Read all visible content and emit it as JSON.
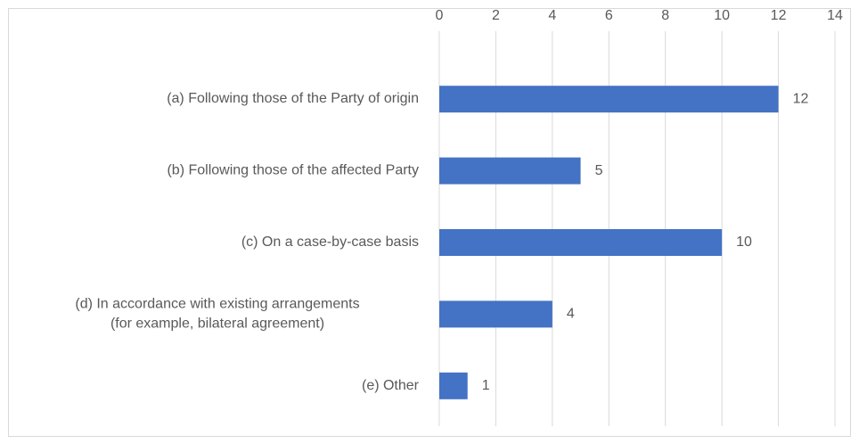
{
  "chart_data": {
    "type": "bar",
    "orientation": "horizontal",
    "categories": [
      "(a) Following those of the Party of origin",
      "(b) Following those of the affected Party",
      "(c) On a case-by-case basis",
      "(d) In accordance with existing arrangements\n(for example, bilateral agreement)",
      "(e) Other"
    ],
    "values": [
      12,
      5,
      10,
      4,
      1
    ],
    "color": "#4472c4",
    "xlim": [
      0,
      14
    ],
    "xticks": [
      0,
      2,
      4,
      6,
      8,
      10,
      12,
      14
    ],
    "grid": true,
    "data_labels": true
  }
}
